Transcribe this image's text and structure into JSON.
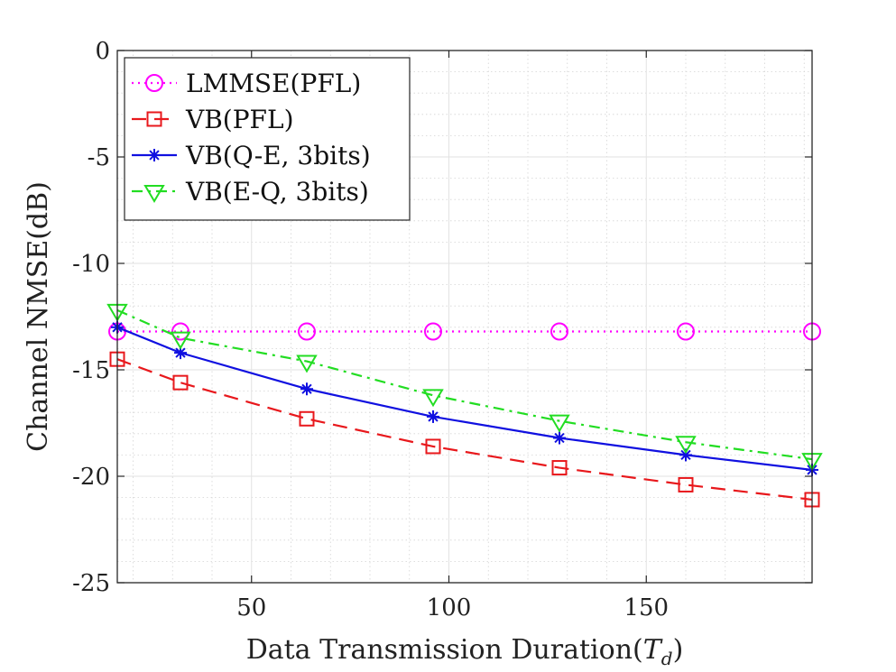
{
  "chart_data": {
    "type": "line",
    "title": "",
    "xlabel": "Data Transmission Duration(",
    "xlabel_var": "T",
    "xlabel_sub": "d",
    "xlabel_close": ")",
    "ylabel": "Channel NMSE(dB)",
    "xlim": [
      16,
      192
    ],
    "ylim": [
      -25,
      0
    ],
    "xticks": [
      50,
      100,
      150
    ],
    "yticks": [
      0,
      -5,
      -10,
      -15,
      -20,
      -25
    ],
    "grid": true,
    "minor_grid": true,
    "legend_position": "top-left",
    "x": [
      16,
      32,
      64,
      96,
      128,
      160,
      192
    ],
    "series": [
      {
        "name": "LMMSE(PFL)",
        "color": "#ff00ff",
        "marker": "circle",
        "dash": "dotted",
        "values": [
          -13.2,
          -13.2,
          -13.2,
          -13.2,
          -13.2,
          -13.2,
          -13.2
        ]
      },
      {
        "name": "VB(PFL)",
        "color": "#e8181c",
        "marker": "square",
        "dash": "dashed",
        "values": [
          -14.5,
          -15.6,
          -17.3,
          -18.6,
          -19.6,
          -20.4,
          -21.1
        ]
      },
      {
        "name": "VB(Q-E, 3bits)",
        "color": "#1010e0",
        "marker": "asterisk",
        "dash": "solid",
        "values": [
          -13.0,
          -14.2,
          -15.9,
          -17.2,
          -18.2,
          -19.0,
          -19.7
        ]
      },
      {
        "name": "VB(E-Q, 3bits)",
        "color": "#22dd22",
        "marker": "triangle-down",
        "dash": "dashdot",
        "values": [
          -12.2,
          -13.5,
          -14.6,
          -16.2,
          -17.4,
          -18.4,
          -19.2
        ]
      }
    ]
  }
}
